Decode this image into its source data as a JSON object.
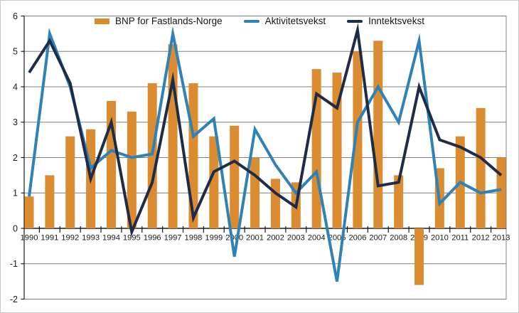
{
  "chart_data": {
    "type": "bar+line",
    "title": "",
    "xlabel": "",
    "ylabel": "",
    "categories": [
      "1990",
      "1991",
      "1992",
      "1993",
      "1994",
      "1995",
      "1996",
      "1997",
      "1998",
      "1999",
      "2000",
      "2001",
      "2002",
      "2003",
      "2004",
      "2005",
      "2006",
      "2007",
      "2008",
      "2009",
      "2010",
      "2011",
      "2012",
      "2013"
    ],
    "series": [
      {
        "name": "BNP for Fastlands-Norge",
        "type": "bar",
        "color": "#DB8C31",
        "values": [
          0.9,
          1.5,
          2.6,
          2.8,
          3.6,
          3.3,
          4.1,
          5.2,
          4.1,
          2.6,
          2.9,
          2.0,
          1.4,
          1.3,
          4.5,
          4.4,
          5.0,
          5.3,
          1.5,
          -1.6,
          1.7,
          2.6,
          3.4,
          2.0
        ]
      },
      {
        "name": "Aktivitetsvekst",
        "type": "line",
        "color": "#2F82B5",
        "values": [
          0.9,
          5.5,
          4.0,
          1.7,
          2.2,
          2.0,
          2.1,
          5.5,
          2.6,
          3.1,
          -0.8,
          2.8,
          1.8,
          1.0,
          1.6,
          -1.5,
          3.0,
          4.0,
          3.0,
          5.3,
          0.7,
          1.3,
          1.0,
          1.1
        ]
      },
      {
        "name": "Inntektsvekst",
        "type": "line",
        "color": "#1E2C47",
        "values": [
          4.4,
          5.3,
          4.1,
          1.4,
          3.0,
          -0.1,
          1.3,
          4.2,
          0.3,
          1.6,
          1.9,
          1.5,
          1.0,
          0.6,
          3.8,
          3.4,
          5.6,
          1.2,
          1.3,
          4.0,
          2.5,
          2.3,
          2.0,
          1.5
        ]
      }
    ],
    "ylim": [
      -2,
      6
    ],
    "ytick_step": 1,
    "yticks": [
      "6",
      "5",
      "4",
      "3",
      "2",
      "1",
      "0",
      "-1",
      "-2"
    ],
    "grid": "horizontal",
    "legend_position": "top",
    "axis_color": "#1a1a1a",
    "grid_color": "#7f7f7f"
  }
}
